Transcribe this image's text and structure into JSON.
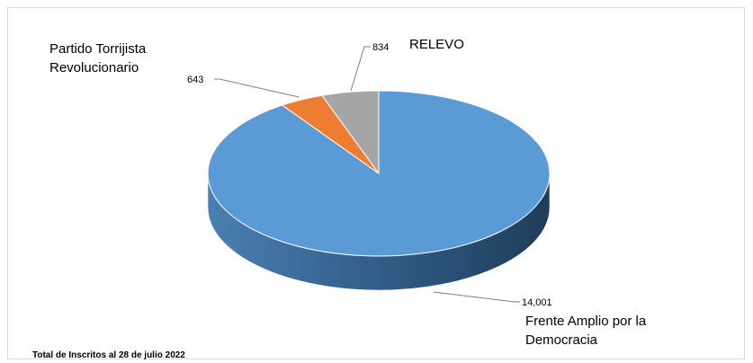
{
  "chart_data": {
    "type": "pie",
    "style": "3d",
    "title": "",
    "slices": [
      {
        "label": "Frente Amplio por la Democracia",
        "value": 14001,
        "value_label": "14,001",
        "color": "#5b9bd5"
      },
      {
        "label": "Partido Torrijista Revolucionario",
        "value": 643,
        "value_label": "643",
        "color": "#ed7d31"
      },
      {
        "label": "RELEVO",
        "value": 834,
        "value_label": "834",
        "color": "#a5a5a5"
      }
    ],
    "note": "Total de  Inscritos al 28 de julio 2022"
  }
}
